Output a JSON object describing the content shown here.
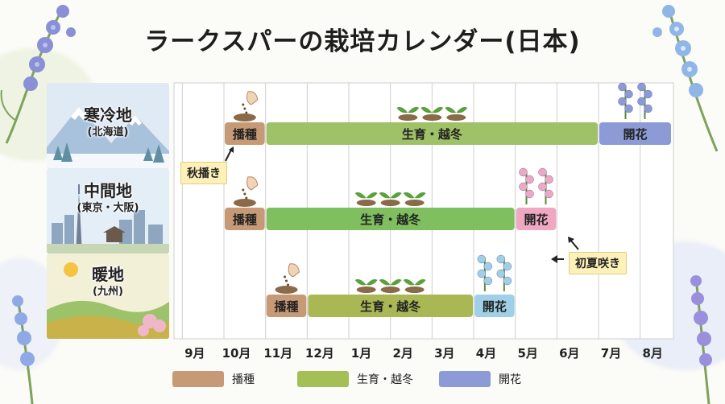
{
  "title": "ラークスパーの栽培カレンダー(日本)",
  "colors": {
    "sowing": "#c69a76",
    "growing": "#9fc167",
    "flowering": "#8c9bd6",
    "flowering_mid": "#f0a7c2",
    "flowering_warm": "#9fd0e8",
    "growing_warm": "#a9b854"
  },
  "regions": [
    {
      "name": "寒冷地",
      "sub": "(北海道)"
    },
    {
      "name": "中間地",
      "sub": "(東京・大阪)"
    },
    {
      "name": "暖地",
      "sub": "(九州)"
    }
  ],
  "callouts": {
    "autumn_sowing": "秋播き",
    "early_summer": "初夏咲き"
  },
  "legend": [
    {
      "label": "播種",
      "color": "#c69a76"
    },
    {
      "label": "生育・越冬",
      "color": "#a4bf55"
    },
    {
      "label": "開花",
      "color": "#8c9bd6"
    }
  ],
  "chart_data": {
    "type": "gantt",
    "title": "ラークスパーの栽培カレンダー(日本)",
    "x_ticks": [
      "9月",
      "10月",
      "11月",
      "12月",
      "1月",
      "2月",
      "3月",
      "4月",
      "5月",
      "6月",
      "7月",
      "8月"
    ],
    "x_unit": "month (September through August)",
    "rows": [
      {
        "region": "寒冷地",
        "sub": "(北海道)",
        "tasks": [
          {
            "label": "播種",
            "start": "10月",
            "end": "11月",
            "color": "#c69a76"
          },
          {
            "label": "生育・越冬",
            "start": "11月",
            "end": "7月",
            "color": "#9fc167"
          },
          {
            "label": "開花",
            "start": "7月",
            "end": "8月",
            "color": "#8c9bd6"
          }
        ]
      },
      {
        "region": "中間地",
        "sub": "(東京・大阪)",
        "tasks": [
          {
            "label": "播種",
            "start": "10月",
            "end": "11月",
            "color": "#c69a76"
          },
          {
            "label": "生育・越冬",
            "start": "11月",
            "end": "5月",
            "color": "#7fbf5f"
          },
          {
            "label": "開花",
            "start": "5月",
            "end": "6月",
            "color": "#f0a7c2"
          }
        ]
      },
      {
        "region": "暖地",
        "sub": "(九州)",
        "tasks": [
          {
            "label": "播種",
            "start": "11月",
            "end": "12月",
            "color": "#c69a76"
          },
          {
            "label": "生育・越冬",
            "start": "12月",
            "end": "4月",
            "color": "#a9b854"
          },
          {
            "label": "開花",
            "start": "4月",
            "end": "5月",
            "color": "#9fd0e8"
          }
        ]
      }
    ],
    "annotations": [
      "秋播き",
      "初夏咲き"
    ],
    "legend": [
      "播種",
      "生育・越冬",
      "開花"
    ]
  }
}
